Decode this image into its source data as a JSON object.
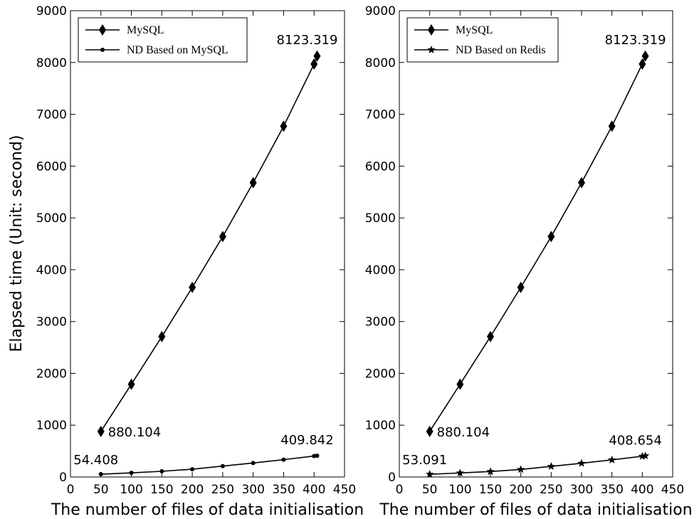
{
  "ylabel": "Elapsed time (Unit: second)",
  "chart_data": [
    {
      "type": "line",
      "xlabel": "The number of files of data initialisation",
      "ylabel": "Elapsed time (Unit: second)",
      "xlim": [
        0,
        450
      ],
      "ylim": [
        0,
        9000
      ],
      "xticks": [
        "0",
        "50",
        "100",
        "150",
        "200",
        "250",
        "300",
        "350",
        "400",
        "450"
      ],
      "yticks": [
        "0",
        "1000",
        "2000",
        "3000",
        "4000",
        "5000",
        "6000",
        "7000",
        "8000",
        "9000"
      ],
      "legend_position": "top-left",
      "grid": false,
      "series": [
        {
          "name": "MySQL",
          "marker": "diamond",
          "x": [
            50,
            100,
            150,
            200,
            250,
            300,
            350,
            400,
            405
          ],
          "y": [
            880.104,
            1790,
            2710,
            3660,
            4640,
            5680,
            6770,
            7970,
            8123.319
          ]
        },
        {
          "name": "ND Based on MySQL",
          "marker": "circle",
          "x": [
            50,
            100,
            150,
            200,
            250,
            300,
            350,
            400,
            405
          ],
          "y": [
            54.408,
            80,
            110,
            150,
            210,
            270,
            335,
            405,
            409.842
          ]
        }
      ],
      "annotations": [
        {
          "text": "8123.319",
          "x": 405,
          "y": 8123.319
        },
        {
          "text": "880.104",
          "x": 50,
          "y": 880.104
        },
        {
          "text": "54.408",
          "x": 50,
          "y": 54.408
        },
        {
          "text": "409.842",
          "x": 405,
          "y": 409.842
        }
      ]
    },
    {
      "type": "line",
      "xlabel": "The number of files of data initialisation",
      "ylabel": "",
      "xlim": [
        0,
        450
      ],
      "ylim": [
        0,
        9000
      ],
      "xticks": [
        "0",
        "50",
        "100",
        "150",
        "200",
        "250",
        "300",
        "350",
        "400",
        "450"
      ],
      "yticks": [
        "0",
        "1000",
        "2000",
        "3000",
        "4000",
        "5000",
        "6000",
        "7000",
        "8000",
        "9000"
      ],
      "legend_position": "top-left",
      "grid": false,
      "series": [
        {
          "name": "MySQL",
          "marker": "diamond",
          "x": [
            50,
            100,
            150,
            200,
            250,
            300,
            350,
            400,
            405
          ],
          "y": [
            880.104,
            1790,
            2710,
            3660,
            4640,
            5680,
            6770,
            7970,
            8123.319
          ]
        },
        {
          "name": "ND Based on Redis",
          "marker": "star",
          "x": [
            50,
            100,
            150,
            200,
            250,
            300,
            350,
            400,
            405
          ],
          "y": [
            53.091,
            78,
            105,
            145,
            205,
            265,
            330,
            400,
            408.654
          ]
        }
      ],
      "annotations": [
        {
          "text": "8123.319",
          "x": 405,
          "y": 8123.319
        },
        {
          "text": "880.104",
          "x": 50,
          "y": 880.104
        },
        {
          "text": "53.091",
          "x": 50,
          "y": 53.091
        },
        {
          "text": "408.654",
          "x": 405,
          "y": 408.654
        }
      ]
    }
  ]
}
